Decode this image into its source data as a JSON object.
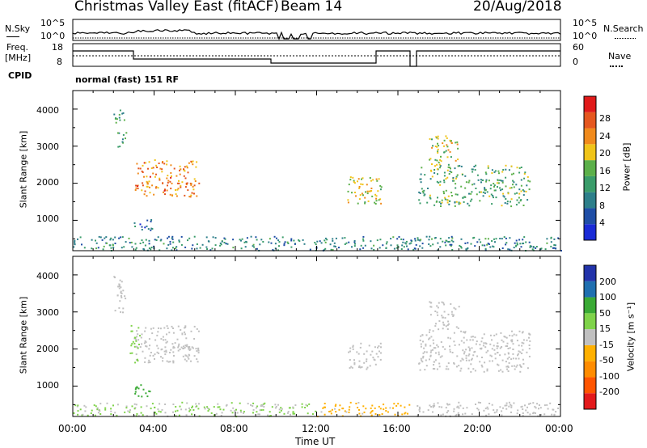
{
  "header": {
    "station": "Christmas Valley East (fitACF)",
    "beam": "Beam 14",
    "date": "20/Aug/2018"
  },
  "strips": {
    "nsky_label": "N.Sky",
    "nsearch_label": "N.Search",
    "nsky_ticks": [
      "10^5",
      "10^0"
    ],
    "nsearch_ticks": [
      "10^5",
      "10^0"
    ],
    "freq_label_1": "Freq.",
    "freq_label_2": "[MHz]",
    "freq_ticks": [
      "18",
      "8"
    ],
    "nave_label": "Nave",
    "nave_ticks": [
      "60",
      "0"
    ],
    "cpid_label": "CPID",
    "cpid_text": "normal (fast) 151 RF"
  },
  "colors": {
    "power_scale": [
      "#1a2bd6",
      "#1f4ea6",
      "#2d7f8a",
      "#3a9c6a",
      "#5cb04a",
      "#f0c419",
      "#f08a1c",
      "#e5571f",
      "#e01a1a"
    ],
    "velocity_scale": [
      "#e31a1c",
      "#ff5500",
      "#ff8c00",
      "#ffb000",
      "#c0c0c0",
      "#7fd34a",
      "#3aaa35",
      "#1f6fb0",
      "#2233aa"
    ],
    "ground_scatter": "#c0c0c0"
  },
  "chart_data": [
    {
      "type": "heatmap",
      "name": "power",
      "ylabel": "Slant Range [km]",
      "yticks": [
        "1000",
        "2000",
        "3000",
        "4000"
      ],
      "ylim": [
        180,
        4500
      ],
      "xlim": [
        0,
        24
      ],
      "colorbar_label": "Power [dB]",
      "colorbar_ticks": [
        "4",
        "8",
        "12",
        "16",
        "20",
        "24",
        "28"
      ],
      "colorbar_range": [
        0,
        30
      ],
      "regions": [
        {
          "t0": 3.0,
          "t1": 6.2,
          "r0": 1650,
          "r1": 2650,
          "v": 22
        },
        {
          "t0": 2.0,
          "t1": 2.6,
          "r0": 3000,
          "r1": 4000,
          "v": 12
        },
        {
          "t0": 3.0,
          "t1": 3.9,
          "r0": 700,
          "r1": 1050,
          "v": 6
        },
        {
          "t0": 0.0,
          "t1": 24.0,
          "r0": 200,
          "r1": 580,
          "v": 9
        },
        {
          "t0": 13.5,
          "t1": 15.2,
          "r0": 1450,
          "r1": 2200,
          "v": 18
        },
        {
          "t0": 17.0,
          "t1": 22.5,
          "r0": 1400,
          "r1": 2500,
          "v": 13
        },
        {
          "t0": 17.5,
          "t1": 19.0,
          "r0": 2500,
          "r1": 3300,
          "v": 17
        }
      ]
    },
    {
      "type": "heatmap",
      "name": "velocity",
      "xlabel": "Time UT",
      "ylabel": "Slant Range [km]",
      "yticks": [
        "1000",
        "2000",
        "3000",
        "4000"
      ],
      "ylim": [
        180,
        4500
      ],
      "xlim": [
        0,
        24
      ],
      "xticks": [
        "00:00",
        "04:00",
        "08:00",
        "12:00",
        "16:00",
        "20:00",
        "00:00"
      ],
      "colorbar_label": "Velocity [m s⁻¹]",
      "colorbar_ticks": [
        "-200",
        "-100",
        "-50",
        "-15",
        "15",
        "50",
        "100",
        "200"
      ],
      "colorbar_range": [
        -250,
        250
      ],
      "regions": [
        {
          "t0": 3.0,
          "t1": 6.2,
          "r0": 1650,
          "r1": 2650,
          "v": 0
        },
        {
          "t0": 2.8,
          "t1": 3.3,
          "r0": 1650,
          "r1": 2650,
          "v": 40
        },
        {
          "t0": 2.0,
          "t1": 2.6,
          "r0": 3000,
          "r1": 4000,
          "v": 0
        },
        {
          "t0": 3.0,
          "t1": 3.9,
          "r0": 700,
          "r1": 1050,
          "v": 120
        },
        {
          "t0": 0.0,
          "t1": 12.0,
          "r0": 200,
          "r1": 580,
          "v": 30
        },
        {
          "t0": 12.0,
          "t1": 16.6,
          "r0": 200,
          "r1": 580,
          "v": -40
        },
        {
          "t0": 16.8,
          "t1": 24.0,
          "r0": 200,
          "r1": 580,
          "v": 0
        },
        {
          "t0": 13.5,
          "t1": 15.2,
          "r0": 1450,
          "r1": 2200,
          "v": 0
        },
        {
          "t0": 17.0,
          "t1": 22.5,
          "r0": 1400,
          "r1": 2500,
          "v": 0
        },
        {
          "t0": 17.5,
          "t1": 19.0,
          "r0": 2500,
          "r1": 3300,
          "v": 0
        }
      ]
    }
  ]
}
